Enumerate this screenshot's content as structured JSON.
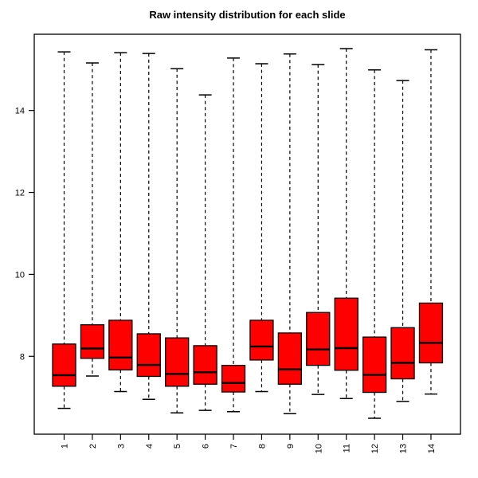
{
  "title": "Raw intensity distribution for each slide",
  "colors": {
    "box_fill": "#FF0000",
    "box_border": "#000000",
    "median": "#000000",
    "whisker": "#000000",
    "axis": "#000000",
    "background": "#FFFFFF"
  },
  "chart_data": {
    "type": "boxplot",
    "title": "Raw intensity distribution for each slide",
    "xlabel": "",
    "ylabel": "",
    "categories": [
      "1",
      "2",
      "3",
      "4",
      "5",
      "6",
      "7",
      "8",
      "9",
      "10",
      "11",
      "12",
      "13",
      "14"
    ],
    "y_ticks": [
      8,
      10,
      12,
      14
    ],
    "ylim": [
      6.1,
      15.86
    ],
    "grid": false,
    "legend": "none",
    "boxes": [
      {
        "label": "1",
        "whisker_low": 6.73,
        "q1": 7.27,
        "median": 7.54,
        "q3": 8.3,
        "whisker_high": 15.43
      },
      {
        "label": "2",
        "whisker_low": 7.52,
        "q1": 7.95,
        "median": 8.19,
        "q3": 8.77,
        "whisker_high": 15.16
      },
      {
        "label": "3",
        "whisker_low": 7.14,
        "q1": 7.67,
        "median": 7.97,
        "q3": 8.88,
        "whisker_high": 15.41
      },
      {
        "label": "4",
        "whisker_low": 6.95,
        "q1": 7.51,
        "median": 7.79,
        "q3": 8.55,
        "whisker_high": 15.39
      },
      {
        "label": "5",
        "whisker_low": 6.62,
        "q1": 7.27,
        "median": 7.57,
        "q3": 8.45,
        "whisker_high": 15.02
      },
      {
        "label": "6",
        "whisker_low": 6.68,
        "q1": 7.32,
        "median": 7.61,
        "q3": 8.26,
        "whisker_high": 14.38
      },
      {
        "label": "7",
        "whisker_low": 6.65,
        "q1": 7.13,
        "median": 7.35,
        "q3": 7.78,
        "whisker_high": 15.28
      },
      {
        "label": "8",
        "whisker_low": 7.14,
        "q1": 7.91,
        "median": 8.24,
        "q3": 8.88,
        "whisker_high": 15.14
      },
      {
        "label": "9",
        "whisker_low": 6.6,
        "q1": 7.32,
        "median": 7.68,
        "q3": 8.57,
        "whisker_high": 15.38
      },
      {
        "label": "10",
        "whisker_low": 7.07,
        "q1": 7.78,
        "median": 8.17,
        "q3": 9.07,
        "whisker_high": 15.12
      },
      {
        "label": "11",
        "whisker_low": 6.97,
        "q1": 7.66,
        "median": 8.2,
        "q3": 9.42,
        "whisker_high": 15.51
      },
      {
        "label": "12",
        "whisker_low": 6.49,
        "q1": 7.12,
        "median": 7.55,
        "q3": 8.47,
        "whisker_high": 14.99
      },
      {
        "label": "13",
        "whisker_low": 6.9,
        "q1": 7.45,
        "median": 7.84,
        "q3": 8.7,
        "whisker_high": 14.73
      },
      {
        "label": "14",
        "whisker_low": 7.08,
        "q1": 7.84,
        "median": 8.33,
        "q3": 9.3,
        "whisker_high": 15.48
      }
    ]
  }
}
